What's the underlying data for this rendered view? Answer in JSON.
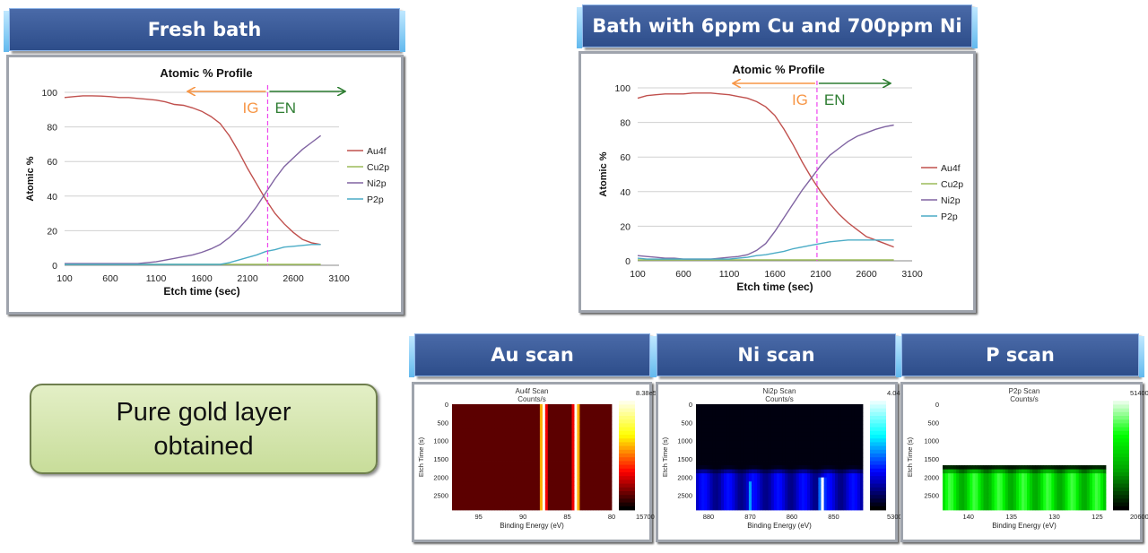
{
  "headers": {
    "fresh": "Fresh bath",
    "bath": "Bath with 6ppm Cu and 700ppm Ni",
    "au_scan": "Au scan",
    "ni_scan": "Ni scan",
    "p_scan": "P scan"
  },
  "note": {
    "line1": "Pure gold layer",
    "line2": "obtained"
  },
  "colors": {
    "Au4f": "#c0504d",
    "Cu2p": "#9bbb59",
    "Ni2p": "#8064a2",
    "P2p": "#4bacc6",
    "IG": "#f79646",
    "EN": "#2e7d32",
    "divider": "#ee44ee"
  },
  "chart_data": [
    {
      "type": "line",
      "title": "Atomic % Profile",
      "xlabel": "Etch time (sec)",
      "ylabel": "Atomic %",
      "xlim": [
        100,
        3100
      ],
      "ylim": [
        0,
        100
      ],
      "xticks": [
        "100",
        "600",
        "1100",
        "1600",
        "2100",
        "2600",
        "3100"
      ],
      "yticks": [
        "0",
        "20",
        "40",
        "60",
        "80",
        "100"
      ],
      "legend": "right",
      "annotations": {
        "left": "IG",
        "right": "EN",
        "boundary_x": 2320
      },
      "x": [
        100,
        200,
        300,
        400,
        500,
        600,
        700,
        800,
        900,
        1000,
        1100,
        1200,
        1300,
        1400,
        1500,
        1600,
        1700,
        1800,
        1900,
        2000,
        2100,
        2200,
        2300,
        2400,
        2500,
        2600,
        2700,
        2800,
        2900
      ],
      "series": [
        {
          "name": "Au4f",
          "values": [
            97,
            97.5,
            98,
            98,
            97.8,
            97.5,
            97,
            97,
            96.5,
            96,
            95.5,
            94.5,
            93,
            92.5,
            91,
            89,
            86,
            82,
            75,
            66,
            56,
            47,
            38,
            30,
            24,
            19,
            15,
            13,
            12
          ]
        },
        {
          "name": "Cu2p",
          "values": [
            0.5,
            0.5,
            0.5,
            0.5,
            0.5,
            0.5,
            0.5,
            0.5,
            0.5,
            0.5,
            0.5,
            0.5,
            0.5,
            0.5,
            0.5,
            0.5,
            0.5,
            0.5,
            0.5,
            0.5,
            0.5,
            0.5,
            0.5,
            0.5,
            0.5,
            0.5,
            0.5,
            0.5,
            0.5
          ]
        },
        {
          "name": "Ni2p",
          "values": [
            1,
            1,
            1,
            1,
            1,
            1,
            1,
            1,
            1,
            1.5,
            2,
            3,
            4,
            5,
            6,
            7.5,
            9.5,
            12,
            16,
            21,
            27,
            34,
            42,
            50,
            57,
            62,
            67,
            71,
            75
          ]
        },
        {
          "name": "P2p",
          "values": [
            0.5,
            0.5,
            0.5,
            0.5,
            0.5,
            0.5,
            0.5,
            0.5,
            0.5,
            0.5,
            0.5,
            0.5,
            0.5,
            0.5,
            0.5,
            0.5,
            0.5,
            0.5,
            1.5,
            3,
            4.5,
            6,
            8,
            9,
            10.5,
            11,
            11.5,
            12,
            12
          ]
        }
      ]
    },
    {
      "type": "line",
      "title": "Atomic % Profile",
      "xlabel": "Etch time (sec)",
      "ylabel": "Atomic %",
      "xlim": [
        100,
        3100
      ],
      "ylim": [
        0,
        100
      ],
      "xticks": [
        "100",
        "600",
        "1100",
        "1600",
        "2100",
        "2600",
        "3100"
      ],
      "yticks": [
        "0",
        "20",
        "40",
        "60",
        "80",
        "100"
      ],
      "legend": "right",
      "annotations": {
        "left": "IG",
        "right": "EN",
        "boundary_x": 2060
      },
      "x": [
        100,
        200,
        300,
        400,
        500,
        600,
        700,
        800,
        900,
        1000,
        1100,
        1200,
        1300,
        1400,
        1500,
        1600,
        1700,
        1800,
        1900,
        2000,
        2100,
        2200,
        2300,
        2400,
        2500,
        2600,
        2700,
        2800,
        2900
      ],
      "series": [
        {
          "name": "Au4f",
          "values": [
            94,
            95.5,
            96,
            96.5,
            96.5,
            96.5,
            97,
            97,
            97,
            96.5,
            96,
            95,
            94,
            92,
            89,
            84,
            76,
            67,
            57,
            48,
            40,
            33,
            27,
            22,
            18,
            14,
            12,
            10,
            8
          ]
        },
        {
          "name": "Cu2p",
          "values": [
            0.5,
            0.5,
            0.5,
            0.5,
            0.5,
            0.5,
            0.5,
            0.5,
            0.5,
            0.5,
            0.5,
            0.5,
            0.5,
            0.5,
            0.5,
            0.5,
            0.5,
            0.5,
            0.5,
            0.5,
            0.5,
            0.5,
            0.5,
            0.5,
            0.5,
            0.5,
            0.5,
            0.5,
            0.5
          ]
        },
        {
          "name": "Ni2p",
          "values": [
            3,
            2.5,
            2,
            1.5,
            1.5,
            1,
            1,
            1,
            1,
            1.5,
            2,
            2.5,
            3.5,
            6,
            10,
            17,
            25,
            33,
            41,
            48,
            55,
            61,
            65,
            69,
            72,
            74,
            76,
            77.5,
            78.5
          ]
        },
        {
          "name": "P2p",
          "values": [
            1.5,
            1,
            1,
            1,
            1,
            1,
            1,
            1,
            1,
            1,
            1,
            1.5,
            2,
            3,
            3.5,
            4.5,
            5.5,
            7,
            8,
            9,
            10,
            11,
            11.5,
            12,
            12,
            12,
            12,
            12,
            12
          ]
        }
      ]
    },
    {
      "type": "heatmap",
      "title": "Au4f Scan",
      "subtitle": "Counts/s",
      "xlabel": "Binding Energy (eV)",
      "ylabel": "Etch Time (s)",
      "xlim": [
        98,
        80
      ],
      "ylim": [
        0,
        2900
      ],
      "xticks": [
        "95",
        "90",
        "85",
        "80"
      ],
      "yticks": [
        "0",
        "500",
        "1000",
        "1500",
        "2000",
        "2500"
      ],
      "colorbar": {
        "max": "8.38e5",
        "min": "15700",
        "colors": [
          "#000000",
          "#ff0000",
          "#ffff00",
          "#ffffff"
        ]
      },
      "peaks": [
        {
          "x": 87.7,
          "from": 0,
          "to": 2900,
          "intensity": 1.0
        },
        {
          "x": 84.0,
          "from": 0,
          "to": 2900,
          "intensity": 1.0
        }
      ],
      "background": 0.12
    },
    {
      "type": "heatmap",
      "title": "Ni2p Scan",
      "subtitle": "Counts/s",
      "xlabel": "Binding Energy (eV)",
      "ylabel": "Etch Time (s)",
      "xlim": [
        883,
        843
      ],
      "ylim": [
        0,
        2900
      ],
      "xticks": [
        "880",
        "870",
        "860",
        "850"
      ],
      "yticks": [
        "0",
        "500",
        "1000",
        "1500",
        "2000",
        "2500"
      ],
      "colorbar": {
        "max": "4.04e5",
        "min": "53000",
        "colors": [
          "#000000",
          "#0000ff",
          "#00ffff",
          "#ffffff"
        ]
      },
      "peaks": [
        {
          "x": 869.9,
          "from": 2100,
          "to": 2900,
          "intensity": 0.55
        },
        {
          "x": 852.7,
          "from": 2000,
          "to": 2900,
          "intensity": 1.0
        }
      ],
      "band": {
        "from": 1700,
        "to": 2900,
        "intensity": 0.35
      },
      "background": 0.02
    },
    {
      "type": "heatmap",
      "title": "P2p Scan",
      "subtitle": "Counts/s",
      "xlabel": "Binding Energy (eV)",
      "ylabel": "Etch Time (s)",
      "xlim": [
        143,
        124
      ],
      "ylim": [
        0,
        2900
      ],
      "xticks": [
        "140",
        "135",
        "130",
        "125"
      ],
      "yticks": [
        "0",
        "500",
        "1000",
        "1500",
        "2000",
        "2500"
      ],
      "colorbar": {
        "max": "51400",
        "min": "20600",
        "colors": [
          "#000000",
          "#00a000",
          "#00ff00",
          "#ffffff"
        ]
      },
      "peaks": [
        {
          "x": 129.8,
          "from": 2100,
          "to": 2900,
          "intensity": 0.5
        }
      ],
      "band": {
        "from": 1700,
        "to": 2900,
        "intensity": 0.75
      },
      "background": 0.0
    }
  ]
}
